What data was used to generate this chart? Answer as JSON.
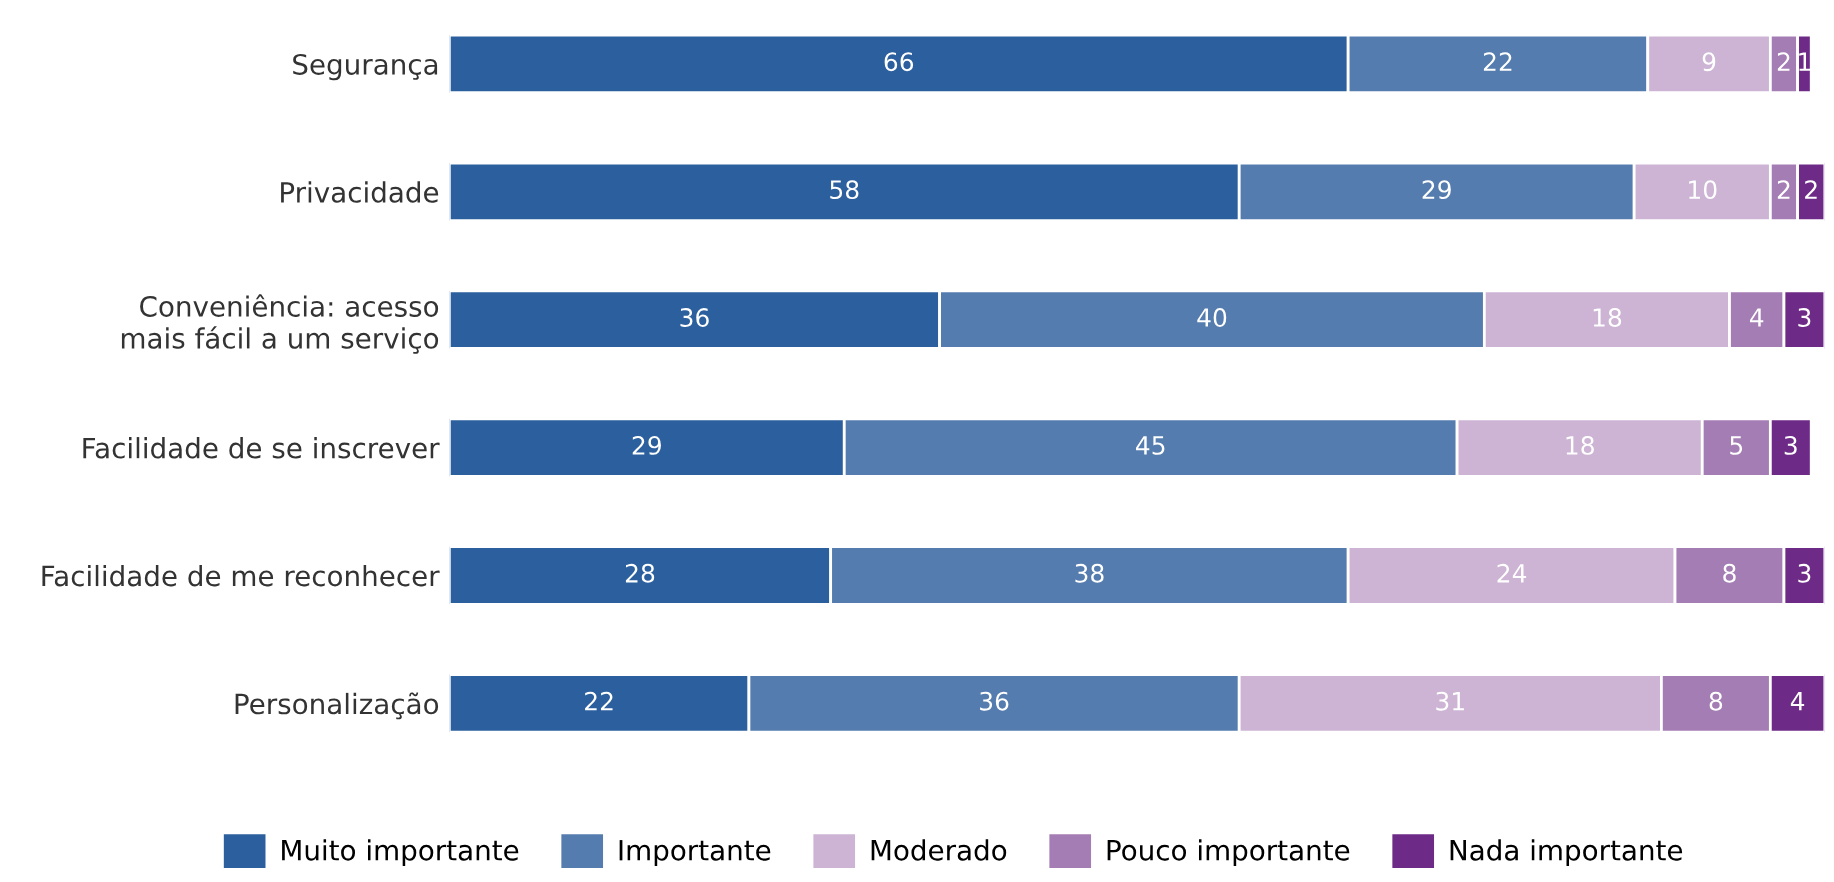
{
  "chart_data": {
    "type": "bar",
    "orientation": "horizontal",
    "stacked": true,
    "data_labels": true,
    "legend": "bottom",
    "grid": false,
    "tick_labels": "y",
    "categories": [
      "Segurança",
      "Privacidade",
      "Conveniência: acesso\nmais fácil a um serviço",
      "Facilidade de se inscrever",
      "Facilidade de me reconhecer",
      "Personalização"
    ],
    "series": [
      {
        "name": "Muito importante",
        "color": "#2b5f9e",
        "values": [
          66,
          58,
          36,
          29,
          28,
          22
        ]
      },
      {
        "name": "Importante",
        "color": "#547cae",
        "values": [
          22,
          29,
          40,
          45,
          38,
          36
        ]
      },
      {
        "name": "Moderado",
        "color": "#cdb4d4",
        "values": [
          9,
          10,
          18,
          18,
          24,
          31
        ]
      },
      {
        "name": "Pouco importante",
        "color": "#a47db4",
        "values": [
          2,
          2,
          4,
          5,
          8,
          8
        ]
      },
      {
        "name": "Nada importante",
        "color": "#6e2a87",
        "values": [
          1,
          2,
          3,
          3,
          3,
          4
        ]
      }
    ]
  }
}
